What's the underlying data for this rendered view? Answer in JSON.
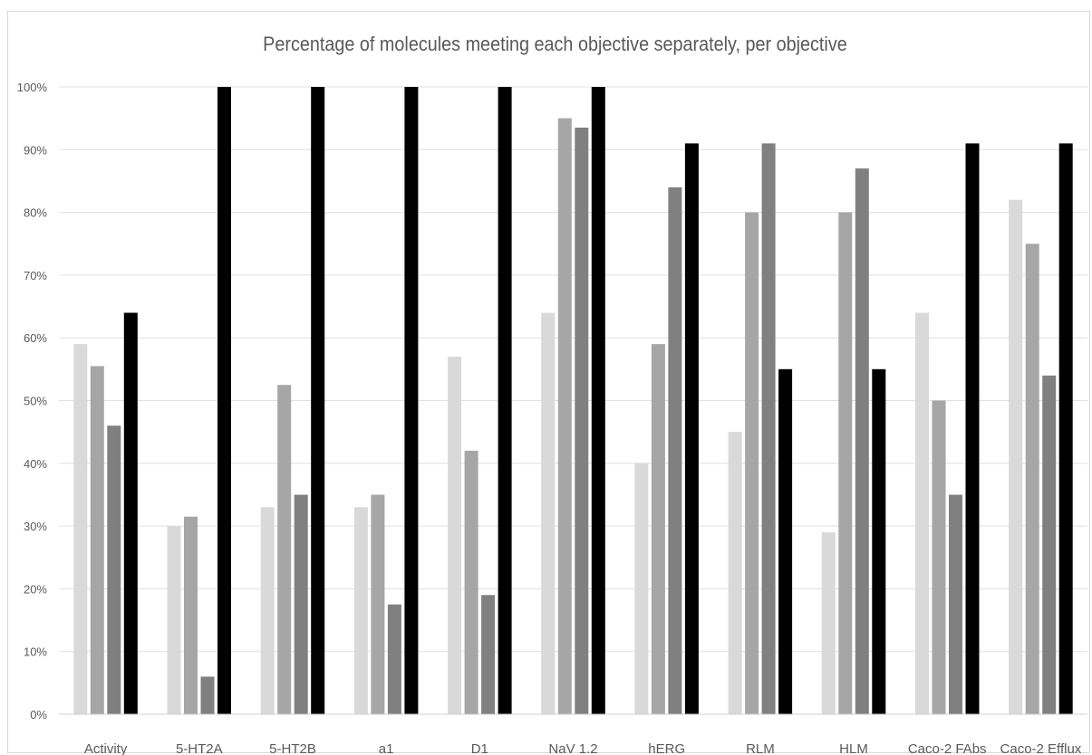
{
  "chart_data": {
    "type": "bar",
    "title": "Percentage of molecules meeting each objective separately, per objective",
    "categories": [
      "Activity",
      "5-HT2A",
      "5-HT2B",
      "a1",
      "D1",
      "NaV 1.2",
      "hERG",
      "RLM",
      "HLM",
      "Caco-2 FAbs",
      "Caco-2 Efflux"
    ],
    "series": [
      {
        "color": "#d9d9d9",
        "values": [
          59,
          30,
          33,
          33,
          57,
          64,
          40,
          45,
          29,
          64,
          82
        ]
      },
      {
        "color": "#a6a6a6",
        "values": [
          55.5,
          31.5,
          52.5,
          35,
          42,
          95,
          59,
          80,
          80,
          50,
          75
        ]
      },
      {
        "color": "#808080",
        "values": [
          46,
          6,
          35,
          17.5,
          19,
          93.5,
          84,
          91,
          87,
          35,
          54
        ]
      },
      {
        "color": "#000000",
        "values": [
          64,
          100,
          100,
          100,
          100,
          100,
          91,
          55,
          55,
          91,
          91
        ]
      }
    ],
    "y_ticks": [
      "0%",
      "10%",
      "20%",
      "30%",
      "40%",
      "50%",
      "60%",
      "70%",
      "80%",
      "90%",
      "100%"
    ],
    "ylim": [
      0,
      100
    ],
    "grid": true,
    "legend": "none"
  }
}
